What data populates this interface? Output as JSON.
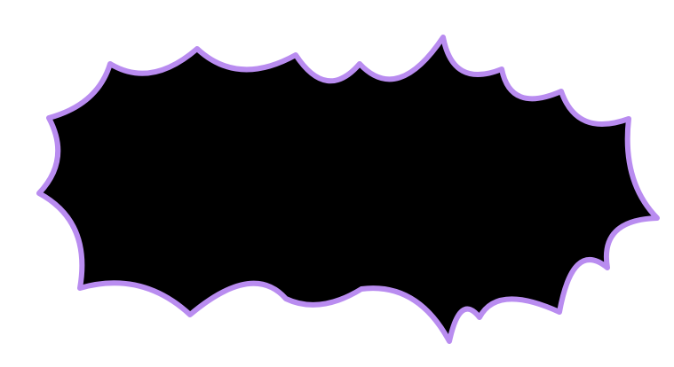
{
  "shape": {
    "kind": "burst-speech-bubble",
    "fill_color": "#000000",
    "outline_color": "#b98cf0",
    "background_color": "#ffffff"
  }
}
